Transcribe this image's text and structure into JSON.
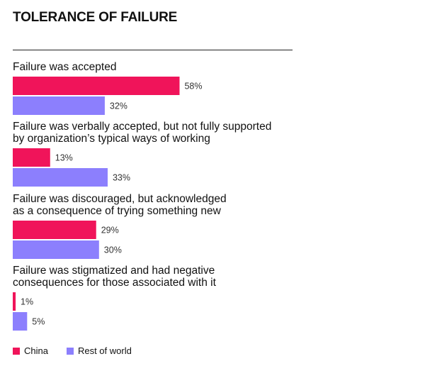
{
  "chart_data": {
    "type": "bar",
    "orientation": "horizontal",
    "title": "TOLERANCE OF FAILURE",
    "categories": [
      [
        "Failure was accepted"
      ],
      [
        "Failure was verbally accepted, but not fully supported",
        "by organization’s typical ways of working"
      ],
      [
        "Failure was discouraged, but acknowledged",
        "as a consequence of trying something new"
      ],
      [
        "Failure was stigmatized and had negative",
        "consequences for those associated with it"
      ]
    ],
    "series": [
      {
        "name": "China",
        "color": "#f0145a",
        "values": [
          58,
          13,
          29,
          1
        ],
        "labels": [
          "58%",
          "13%",
          "29%",
          "1%"
        ]
      },
      {
        "name": "Rest of world",
        "color": "#8c7ffd",
        "values": [
          32,
          33,
          30,
          5
        ],
        "labels": [
          "32%",
          "33%",
          "30%",
          "5%"
        ]
      }
    ],
    "unit": "%",
    "xlim": [
      0,
      100
    ],
    "grid": false,
    "legend_position": "bottom-left"
  }
}
